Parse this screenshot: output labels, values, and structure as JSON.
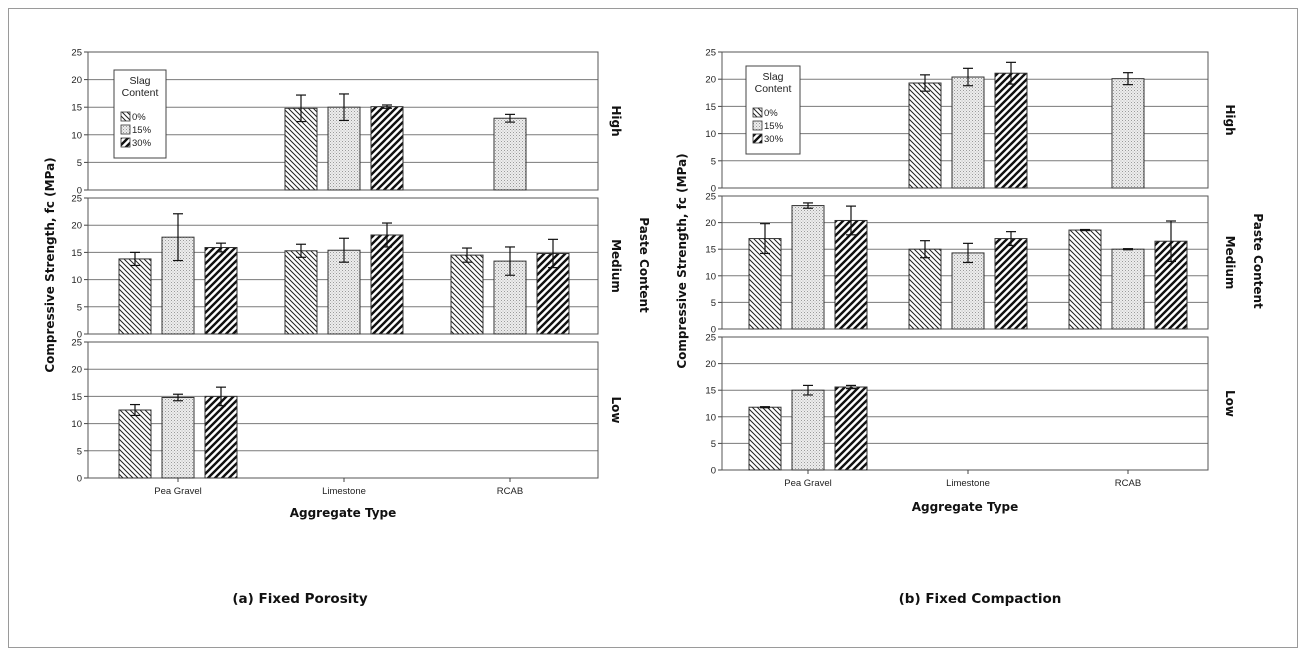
{
  "chart_data": [
    {
      "type": "bar",
      "caption": "(a) Fixed Porosity",
      "xlabel": "Aggregate Type",
      "ylabel": "Compressive Strength, fc (MPa)",
      "facet_label": "Paste Content",
      "categories": [
        "Pea Gravel",
        "Limestone",
        "RCAB"
      ],
      "ylim": [
        0,
        25
      ],
      "yticks": [
        0,
        5,
        10,
        15,
        20,
        25
      ],
      "grid": true,
      "legend": {
        "title": "Slag Content",
        "entries": [
          "0%",
          "15%",
          "30%"
        ],
        "placement": "top-left"
      },
      "panels": [
        {
          "name": "High",
          "series": [
            {
              "name": "0%",
              "values": [
                null,
                14.8,
                null
              ],
              "errors": [
                null,
                2.4,
                null
              ]
            },
            {
              "name": "15%",
              "values": [
                null,
                15.0,
                13.0
              ],
              "errors": [
                null,
                2.4,
                0.7
              ]
            },
            {
              "name": "30%",
              "values": [
                null,
                15.1,
                null
              ],
              "errors": [
                null,
                0.3,
                null
              ]
            }
          ]
        },
        {
          "name": "Medium",
          "series": [
            {
              "name": "0%",
              "values": [
                13.8,
                15.3,
                14.5
              ],
              "errors": [
                1.2,
                1.2,
                1.3
              ]
            },
            {
              "name": "15%",
              "values": [
                17.8,
                15.4,
                13.4
              ],
              "errors": [
                4.3,
                2.2,
                2.6
              ]
            },
            {
              "name": "30%",
              "values": [
                15.9,
                18.2,
                14.8
              ],
              "errors": [
                0.8,
                2.2,
                2.6
              ]
            }
          ]
        },
        {
          "name": "Low",
          "series": [
            {
              "name": "0%",
              "values": [
                12.5,
                null,
                null
              ],
              "errors": [
                1.0,
                null,
                null
              ]
            },
            {
              "name": "15%",
              "values": [
                14.8,
                null,
                null
              ],
              "errors": [
                0.6,
                null,
                null
              ]
            },
            {
              "name": "30%",
              "values": [
                15.0,
                null,
                null
              ],
              "errors": [
                1.7,
                null,
                null
              ]
            }
          ]
        }
      ]
    },
    {
      "type": "bar",
      "caption": "(b) Fixed Compaction",
      "xlabel": "Aggregate Type",
      "ylabel": "Compressive Strength, fc (MPa)",
      "facet_label": "Paste Content",
      "categories": [
        "Pea Gravel",
        "Limestone",
        "RCAB"
      ],
      "ylim": [
        0,
        25
      ],
      "yticks": [
        0,
        5,
        10,
        15,
        20,
        25
      ],
      "grid": true,
      "legend": {
        "title": "Slag Content",
        "entries": [
          "0%",
          "15%",
          "30%"
        ],
        "placement": "top-left"
      },
      "panels": [
        {
          "name": "High",
          "series": [
            {
              "name": "0%",
              "values": [
                null,
                19.3,
                null
              ],
              "errors": [
                null,
                1.5,
                null
              ]
            },
            {
              "name": "15%",
              "values": [
                null,
                20.4,
                20.1
              ],
              "errors": [
                null,
                1.6,
                1.1
              ]
            },
            {
              "name": "30%",
              "values": [
                null,
                21.1,
                null
              ],
              "errors": [
                null,
                2.0,
                null
              ]
            }
          ]
        },
        {
          "name": "Medium",
          "series": [
            {
              "name": "0%",
              "values": [
                17.0,
                15.0,
                18.6
              ],
              "errors": [
                2.8,
                1.6,
                0.1
              ]
            },
            {
              "name": "15%",
              "values": [
                23.2,
                14.3,
                15.0
              ],
              "errors": [
                0.5,
                1.8,
                0.1
              ]
            },
            {
              "name": "30%",
              "values": [
                20.4,
                17.0,
                16.5
              ],
              "errors": [
                2.7,
                1.3,
                3.8
              ]
            }
          ]
        },
        {
          "name": "Low",
          "series": [
            {
              "name": "0%",
              "values": [
                11.8,
                null,
                null
              ],
              "errors": [
                0.1,
                null,
                null
              ]
            },
            {
              "name": "15%",
              "values": [
                15.0,
                null,
                null
              ],
              "errors": [
                0.9,
                null,
                null
              ]
            },
            {
              "name": "30%",
              "values": [
                15.6,
                null,
                null
              ],
              "errors": [
                0.3,
                null,
                null
              ]
            }
          ]
        }
      ]
    }
  ]
}
